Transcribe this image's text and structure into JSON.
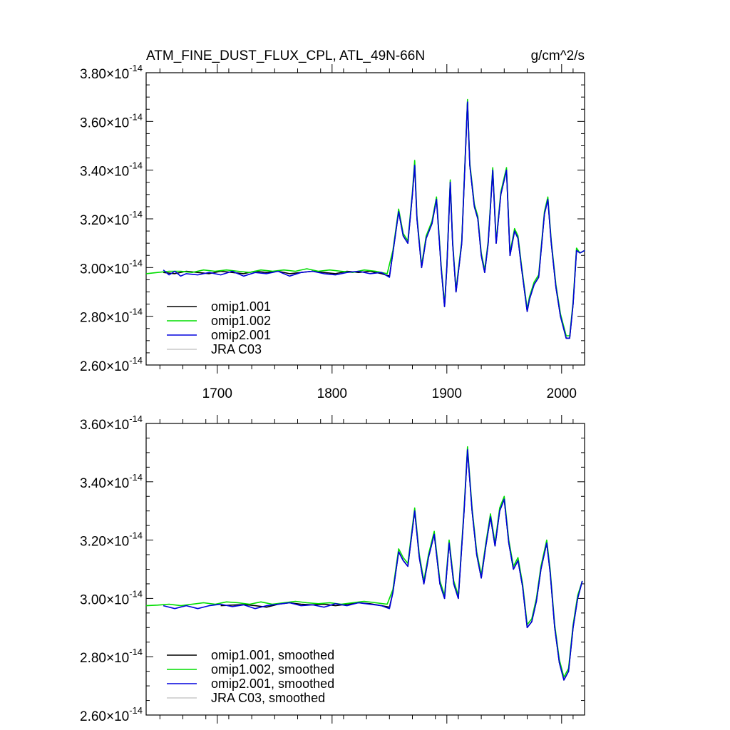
{
  "header": {
    "title": "ATM_FINE_DUST_FLUX_CPL, ATL_49N-66N",
    "units": "g/cm^2/s"
  },
  "chart_data": [
    {
      "type": "line",
      "title": "ATM_FINE_DUST_FLUX_CPL, ATL_49N-66N",
      "units": "g/cm^2/s",
      "xlim": [
        1638,
        2020
      ],
      "ylim": [
        2.6,
        3.8
      ],
      "y_exponent": "-14",
      "x_ticks": [
        1700,
        1800,
        1900,
        2000
      ],
      "x_tick_labels": [
        "1700",
        "1800",
        "1900",
        "2000"
      ],
      "y_ticks": [
        2.6,
        2.8,
        3.0,
        3.2,
        3.4,
        3.6,
        3.8
      ],
      "y_tick_labels": [
        "2.60",
        "2.80",
        "3.00",
        "3.20",
        "3.40",
        "3.60",
        "3.80"
      ],
      "legend_position": "bottom-left",
      "series": [
        {
          "name": "omip1.001",
          "color": "#000000",
          "x": [
            1653,
            1663,
            1673,
            1683,
            1693,
            1703,
            1713,
            1723,
            1733,
            1743,
            1753,
            1763,
            1773,
            1783,
            1793,
            1803,
            1813,
            1823,
            1833,
            1843,
            1850,
            1853,
            1858,
            1862,
            1866,
            1870,
            1872,
            1874,
            1878,
            1882,
            1887,
            1891,
            1895,
            1898,
            1900,
            1903,
            1905,
            1908,
            1913,
            1918,
            1920,
            1924,
            1927,
            1930,
            1933,
            1936,
            1940,
            1943,
            1947,
            1952,
            1955,
            1959,
            1962,
            1965,
            1970,
            1972,
            1976,
            1980,
            1985,
            1988,
            1991,
            1995,
            1999,
            2004,
            2007,
            2010,
            2013,
            2016,
            2020
          ],
          "y": [
            2.98,
            2.975,
            2.985,
            2.98,
            2.975,
            2.985,
            2.98,
            2.975,
            2.985,
            2.98,
            2.985,
            2.975,
            2.98,
            2.985,
            2.98,
            2.975,
            2.985,
            2.98,
            2.985,
            2.975,
            2.965,
            3.06,
            3.23,
            3.13,
            3.1,
            3.3,
            3.42,
            3.2,
            3.0,
            3.12,
            3.18,
            3.28,
            3.0,
            2.84,
            3.0,
            3.35,
            3.1,
            2.9,
            3.1,
            3.68,
            3.42,
            3.25,
            3.2,
            3.05,
            2.98,
            3.1,
            3.4,
            3.1,
            3.3,
            3.4,
            3.05,
            3.15,
            3.12,
            3.0,
            2.82,
            2.87,
            2.93,
            2.96,
            3.22,
            3.28,
            3.1,
            2.92,
            2.8,
            2.71,
            2.71,
            2.85,
            3.07,
            3.06,
            3.07
          ]
        },
        {
          "name": "omip1.002",
          "color": "#00dd00",
          "x": [
            1638,
            1648,
            1658,
            1668,
            1678,
            1688,
            1698,
            1708,
            1718,
            1728,
            1738,
            1748,
            1758,
            1768,
            1778,
            1788,
            1798,
            1808,
            1818,
            1828,
            1838,
            1848,
            1853,
            1858,
            1862,
            1866,
            1870,
            1872,
            1874,
            1878,
            1882,
            1887,
            1891,
            1895,
            1898,
            1900,
            1903,
            1905,
            1908,
            1913,
            1918,
            1920,
            1924,
            1927,
            1930,
            1933,
            1936,
            1940,
            1943,
            1947,
            1952,
            1955,
            1959,
            1962,
            1965,
            1970,
            1972,
            1976,
            1980,
            1985,
            1988,
            1991,
            1995,
            1999,
            2004,
            2007,
            2010,
            2013,
            2016,
            2020
          ],
          "y": [
            2.975,
            2.98,
            2.985,
            2.985,
            2.98,
            2.99,
            2.985,
            2.99,
            2.985,
            2.98,
            2.99,
            2.985,
            2.99,
            2.985,
            2.995,
            2.985,
            2.99,
            2.985,
            2.98,
            2.99,
            2.985,
            2.975,
            3.07,
            3.24,
            3.14,
            3.11,
            3.31,
            3.44,
            3.21,
            3.01,
            3.13,
            3.19,
            3.29,
            3.01,
            2.85,
            3.01,
            3.36,
            3.11,
            2.91,
            3.11,
            3.69,
            3.43,
            3.26,
            3.21,
            3.06,
            2.99,
            3.11,
            3.41,
            3.11,
            3.31,
            3.41,
            3.06,
            3.16,
            3.13,
            3.01,
            2.83,
            2.88,
            2.94,
            2.97,
            3.23,
            3.29,
            3.11,
            2.93,
            2.81,
            2.72,
            2.72,
            2.86,
            3.08,
            3.06,
            3.07
          ]
        },
        {
          "name": "omip2.001",
          "color": "#0000dd",
          "x": [
            1653,
            1658,
            1663,
            1668,
            1673,
            1683,
            1693,
            1703,
            1713,
            1723,
            1733,
            1743,
            1753,
            1763,
            1773,
            1783,
            1793,
            1803,
            1813,
            1823,
            1833,
            1843,
            1850,
            1853,
            1858,
            1862,
            1866,
            1870,
            1872,
            1874,
            1878,
            1882,
            1887,
            1891,
            1895,
            1898,
            1900,
            1903,
            1905,
            1908,
            1913,
            1918,
            1920,
            1924,
            1927,
            1930,
            1933,
            1936,
            1940,
            1943,
            1947,
            1952,
            1955,
            1959,
            1962,
            1965,
            1970,
            1972,
            1976,
            1980,
            1985,
            1988,
            1991,
            1995,
            1999,
            2004,
            2007,
            2010,
            2013,
            2016,
            2020
          ],
          "y": [
            2.99,
            2.97,
            2.985,
            2.965,
            2.975,
            2.97,
            2.98,
            2.97,
            2.985,
            2.965,
            2.98,
            2.975,
            2.985,
            2.965,
            2.98,
            2.985,
            2.975,
            2.97,
            2.98,
            2.985,
            2.975,
            2.98,
            2.96,
            3.06,
            3.23,
            3.13,
            3.1,
            3.3,
            3.42,
            3.2,
            3.0,
            3.12,
            3.18,
            3.28,
            3.0,
            2.84,
            3.0,
            3.35,
            3.1,
            2.9,
            3.1,
            3.68,
            3.42,
            3.25,
            3.2,
            3.05,
            2.98,
            3.1,
            3.4,
            3.1,
            3.3,
            3.4,
            3.05,
            3.15,
            3.12,
            3.0,
            2.82,
            2.87,
            2.93,
            2.96,
            3.22,
            3.28,
            3.1,
            2.92,
            2.8,
            2.71,
            2.71,
            2.85,
            3.07,
            3.06,
            3.07
          ]
        },
        {
          "name": "JRA C03",
          "color": "#c8c8c8",
          "x": [],
          "y": []
        }
      ]
    },
    {
      "type": "line",
      "xlim": [
        1638,
        2020
      ],
      "ylim": [
        2.6,
        3.6
      ],
      "y_exponent": "-14",
      "x_ticks": [
        1700,
        1800,
        1900,
        2000
      ],
      "y_ticks": [
        2.6,
        2.8,
        3.0,
        3.2,
        3.4,
        3.6
      ],
      "y_tick_labels": [
        "2.60",
        "2.80",
        "3.00",
        "3.20",
        "3.40",
        "3.60"
      ],
      "legend_position": "bottom-left",
      "series": [
        {
          "name": "omip1.001, smoothed",
          "color": "#000000",
          "x": [
            1703,
            1713,
            1723,
            1733,
            1743,
            1753,
            1763,
            1773,
            1783,
            1793,
            1803,
            1813,
            1823,
            1833,
            1843,
            1850,
            1853,
            1858,
            1862,
            1866,
            1872,
            1876,
            1880,
            1884,
            1889,
            1894,
            1898,
            1902,
            1906,
            1910,
            1915,
            1918,
            1922,
            1926,
            1930,
            1934,
            1938,
            1942,
            1946,
            1950,
            1954,
            1958,
            1962,
            1966,
            1970,
            1974,
            1978,
            1982,
            1987,
            1990,
            1994,
            1998,
            2002,
            2006,
            2010,
            2014,
            2018
          ],
          "y": [
            2.975,
            2.977,
            2.979,
            2.975,
            2.97,
            2.98,
            2.985,
            2.98,
            2.978,
            2.98,
            2.975,
            2.98,
            2.985,
            2.982,
            2.975,
            2.97,
            3.02,
            3.16,
            3.13,
            3.11,
            3.3,
            3.14,
            3.05,
            3.14,
            3.22,
            3.05,
            3.0,
            3.19,
            3.05,
            3.0,
            3.3,
            3.51,
            3.3,
            3.15,
            3.07,
            3.18,
            3.28,
            3.18,
            3.3,
            3.34,
            3.19,
            3.1,
            3.13,
            3.04,
            2.9,
            2.92,
            2.99,
            3.1,
            3.19,
            3.09,
            2.9,
            2.78,
            2.72,
            2.75,
            2.9,
            3.0,
            3.06
          ]
        },
        {
          "name": "omip1.002, smoothed",
          "color": "#00dd00",
          "x": [
            1638,
            1648,
            1658,
            1668,
            1678,
            1688,
            1698,
            1708,
            1718,
            1728,
            1738,
            1748,
            1758,
            1768,
            1778,
            1788,
            1798,
            1808,
            1818,
            1828,
            1838,
            1848,
            1853,
            1858,
            1862,
            1866,
            1872,
            1876,
            1880,
            1884,
            1889,
            1894,
            1898,
            1902,
            1906,
            1910,
            1915,
            1918,
            1922,
            1926,
            1930,
            1934,
            1938,
            1942,
            1946,
            1950,
            1954,
            1958,
            1962,
            1966,
            1970,
            1974,
            1978,
            1982,
            1987,
            1990,
            1994,
            1998,
            2002,
            2006,
            2010,
            2014,
            2018
          ],
          "y": [
            2.975,
            2.977,
            2.98,
            2.975,
            2.98,
            2.985,
            2.98,
            2.988,
            2.985,
            2.98,
            2.988,
            2.98,
            2.985,
            2.99,
            2.985,
            2.982,
            2.985,
            2.98,
            2.985,
            2.99,
            2.985,
            2.98,
            3.03,
            3.17,
            3.14,
            3.12,
            3.31,
            3.15,
            3.06,
            3.15,
            3.23,
            3.06,
            3.01,
            3.2,
            3.06,
            3.01,
            3.31,
            3.52,
            3.31,
            3.16,
            3.08,
            3.19,
            3.29,
            3.19,
            3.31,
            3.35,
            3.2,
            3.11,
            3.14,
            3.05,
            2.91,
            2.93,
            3.0,
            3.11,
            3.2,
            3.1,
            2.91,
            2.79,
            2.73,
            2.76,
            2.91,
            3.01,
            3.06
          ]
        },
        {
          "name": "omip2.001, smoothed",
          "color": "#0000dd",
          "x": [
            1653,
            1663,
            1673,
            1683,
            1693,
            1703,
            1713,
            1723,
            1733,
            1743,
            1753,
            1763,
            1773,
            1783,
            1793,
            1803,
            1813,
            1823,
            1833,
            1843,
            1850,
            1853,
            1858,
            1862,
            1866,
            1872,
            1876,
            1880,
            1884,
            1889,
            1894,
            1898,
            1902,
            1906,
            1910,
            1915,
            1918,
            1922,
            1926,
            1930,
            1934,
            1938,
            1942,
            1946,
            1950,
            1954,
            1958,
            1962,
            1966,
            1970,
            1974,
            1978,
            1982,
            1987,
            1990,
            1994,
            1998,
            2002,
            2006,
            2010,
            2014,
            2018
          ],
          "y": [
            2.975,
            2.965,
            2.975,
            2.965,
            2.975,
            2.98,
            2.972,
            2.978,
            2.965,
            2.975,
            2.98,
            2.985,
            2.975,
            2.978,
            2.97,
            2.982,
            2.975,
            2.985,
            2.98,
            2.975,
            2.965,
            3.02,
            3.16,
            3.13,
            3.11,
            3.3,
            3.14,
            3.05,
            3.14,
            3.22,
            3.05,
            3.0,
            3.19,
            3.05,
            3.0,
            3.3,
            3.51,
            3.3,
            3.15,
            3.07,
            3.18,
            3.28,
            3.18,
            3.3,
            3.34,
            3.19,
            3.1,
            3.13,
            3.04,
            2.9,
            2.92,
            2.99,
            3.1,
            3.19,
            3.09,
            2.9,
            2.78,
            2.72,
            2.75,
            2.9,
            3.0,
            3.06
          ]
        },
        {
          "name": "JRA C03, smoothed",
          "color": "#c8c8c8",
          "x": [],
          "y": []
        }
      ]
    }
  ]
}
